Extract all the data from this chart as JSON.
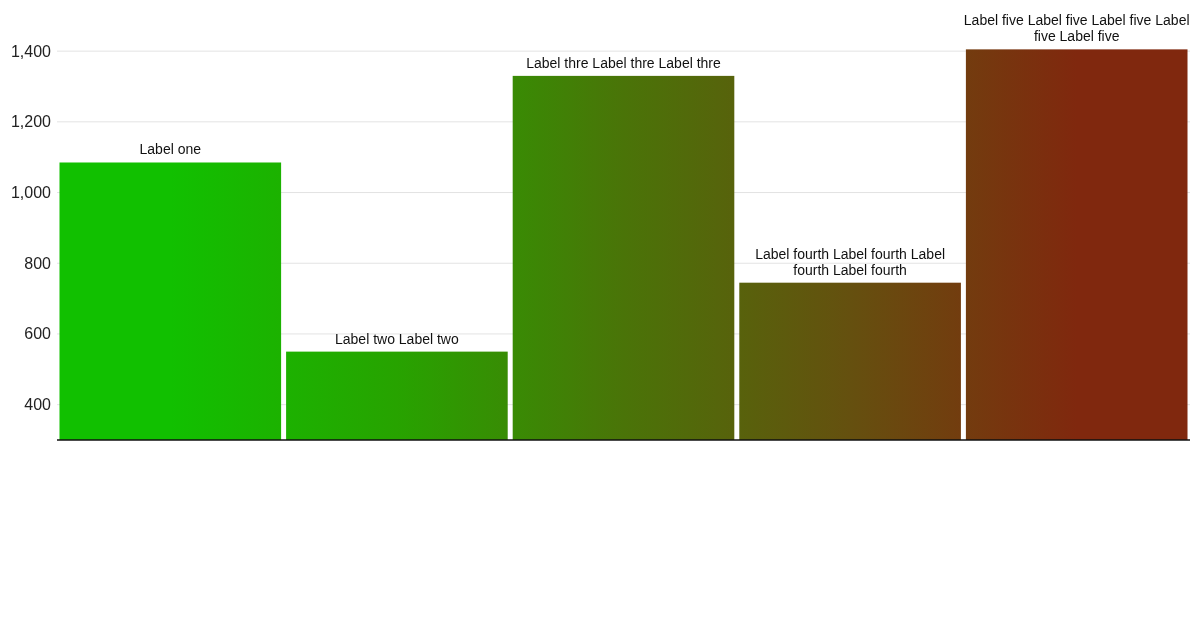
{
  "chart_data": {
    "type": "bar",
    "categories": [
      "Label one",
      "Label two Label two",
      "Label thre Label thre Label thre",
      "Label fourth Label fourth Label fourth Label fourth",
      "Label five Label five Label five Label five Label five"
    ],
    "values": [
      1085,
      550,
      1330,
      745,
      1405
    ],
    "colors": [
      "#11c000",
      "#27a300",
      "#4a7408",
      "#65500f",
      "#80280e"
    ],
    "ylim": [
      300,
      1410
    ],
    "yticks": [
      {
        "value": 400,
        "label": "400"
      },
      {
        "value": 600,
        "label": "600"
      },
      {
        "value": 800,
        "label": "800"
      },
      {
        "value": 1000,
        "label": "1,000"
      },
      {
        "value": 1200,
        "label": "1,200"
      },
      {
        "value": 1400,
        "label": "1,400"
      }
    ],
    "grid": "y"
  }
}
